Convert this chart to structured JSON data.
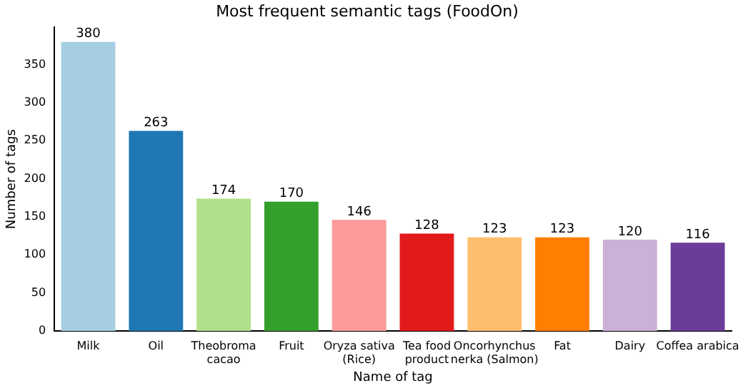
{
  "chart_data": {
    "type": "bar",
    "title": "Most frequent semantic tags (FoodOn)",
    "xlabel": "Name of tag",
    "ylabel": "Number of tags",
    "categories": [
      "Milk",
      "Oil",
      "Theobroma\ncacao",
      "Fruit",
      "Oryza sativa\n(Rice)",
      "Tea food\nproduct",
      "Oncorhynchus\nnerka (Salmon)",
      "Fat",
      "Dairy",
      "Coffea arabica"
    ],
    "values": [
      380,
      263,
      174,
      170,
      146,
      128,
      123,
      123,
      120,
      116
    ],
    "colors": [
      "#a6cee3",
      "#1f78b4",
      "#b2df8a",
      "#33a02c",
      "#fb9a99",
      "#e31a1c",
      "#fdbf6f",
      "#ff7f00",
      "#cab2d6",
      "#6a3d9a"
    ],
    "ylim": [
      0,
      399
    ],
    "yticks": [
      0,
      50,
      100,
      150,
      200,
      250,
      300,
      350
    ],
    "data_labels": true,
    "grid": false,
    "legend": false
  }
}
